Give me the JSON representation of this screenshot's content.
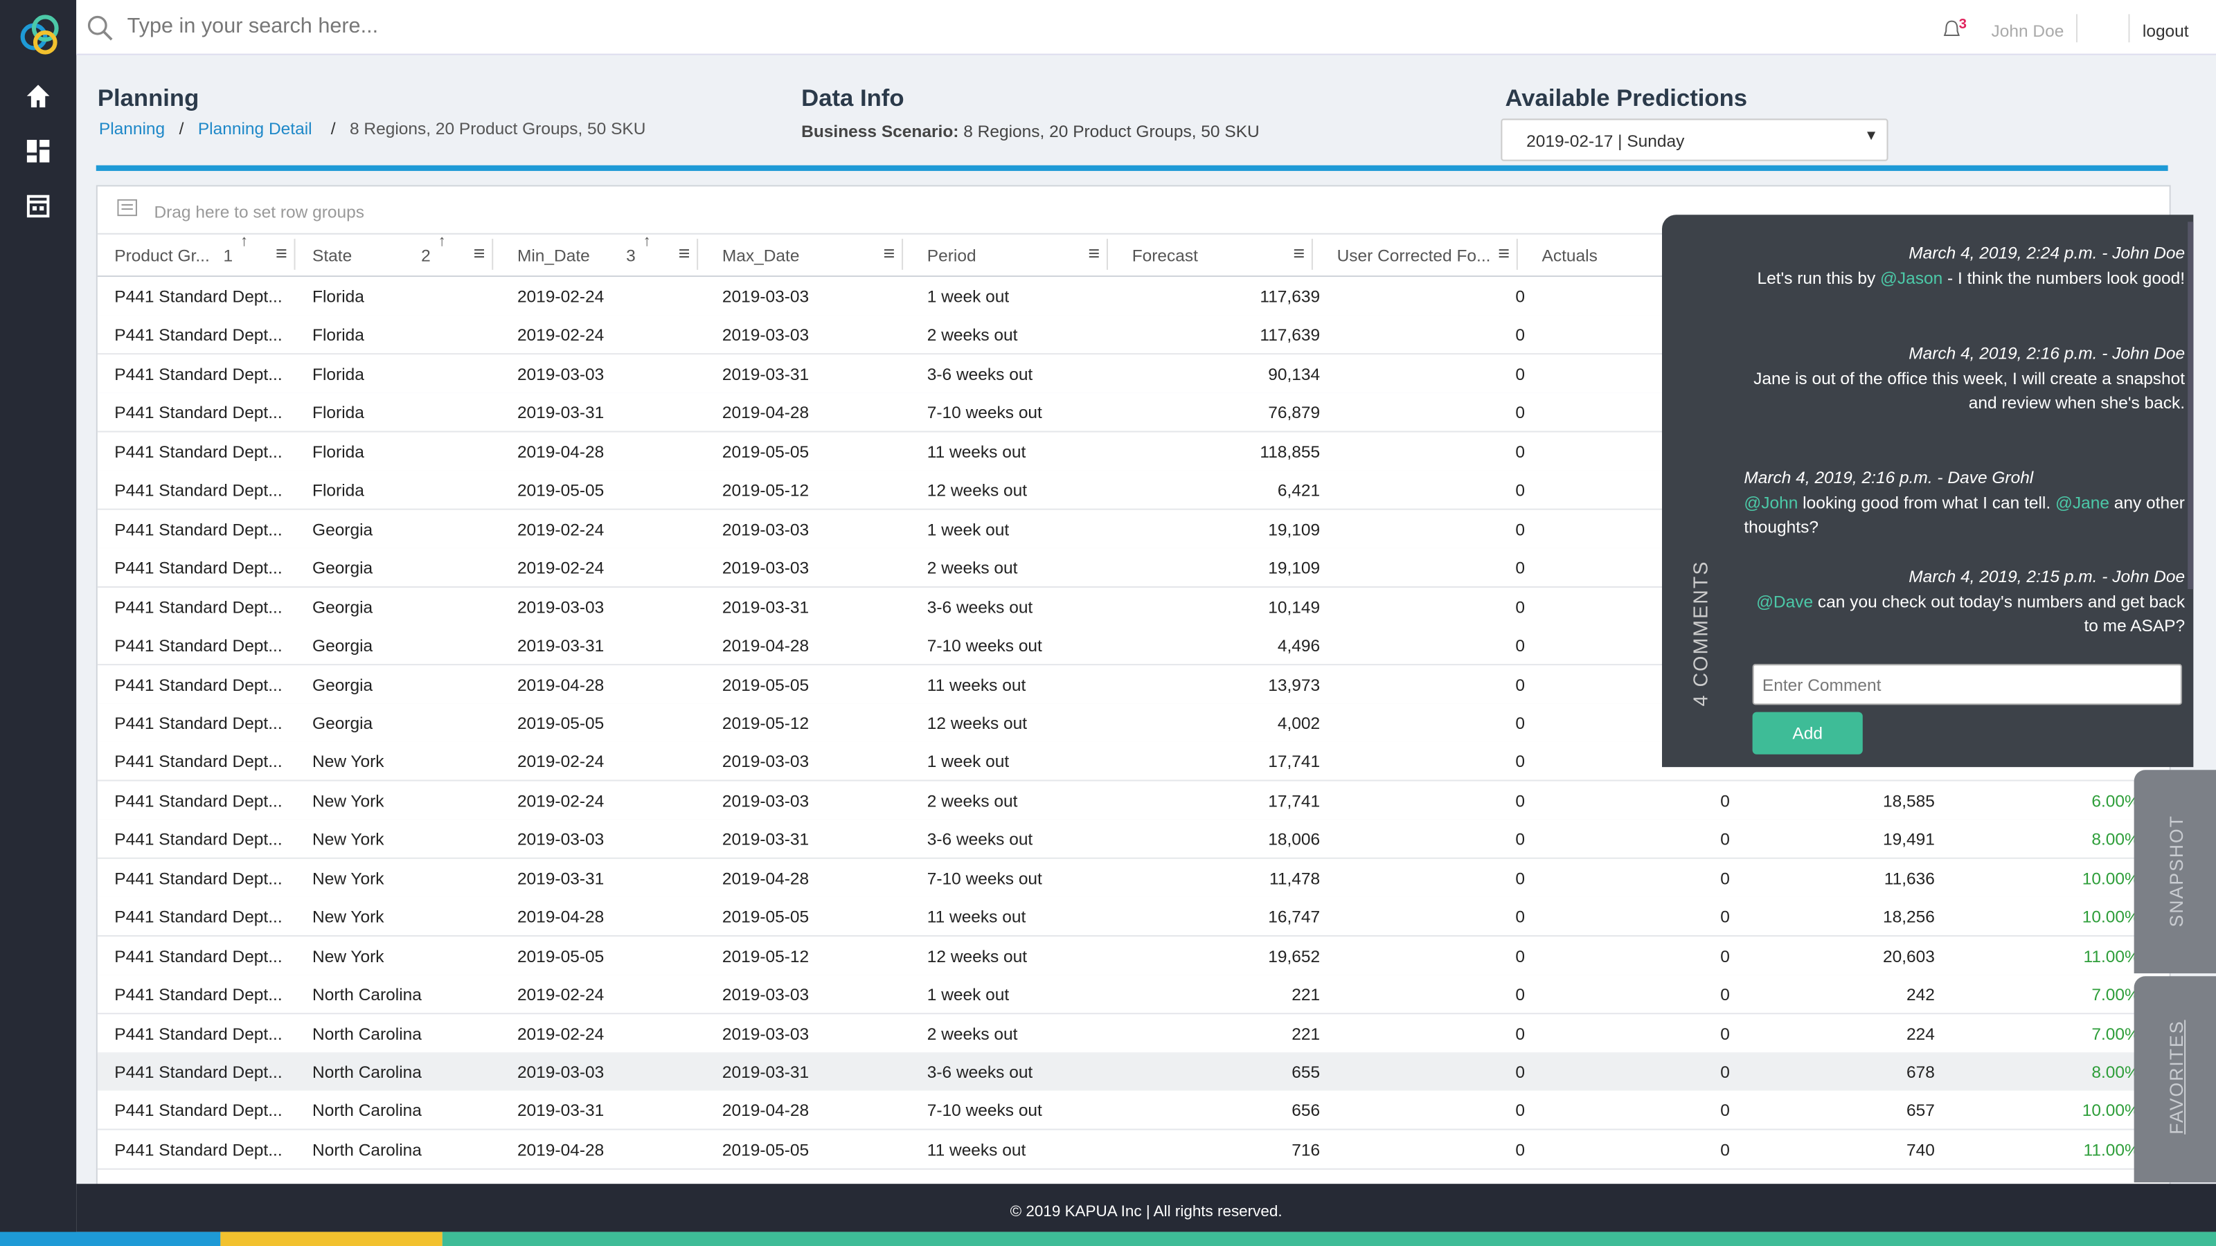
{
  "search_placeholder": "Type in your search here...",
  "header": {
    "notifications": "3",
    "user": "John Doe",
    "logout": "logout"
  },
  "planning": {
    "title": "Planning",
    "breadcrumb": [
      "Planning",
      "Planning Detail",
      "8 Regions, 20 Product Groups, 50 SKU"
    ]
  },
  "data_info": {
    "title": "Data Info",
    "label": "Business Scenario:",
    "value": "8 Regions, 20 Product Groups, 50 SKU"
  },
  "predictions": {
    "title": "Available Predictions",
    "selected": "2019-02-17 | Sunday"
  },
  "table": {
    "group_hint": "Drag here to set row groups",
    "columns": [
      {
        "label": "Product Gr...",
        "sort": "1"
      },
      {
        "label": "State",
        "sort": "2"
      },
      {
        "label": "Min_Date",
        "sort": "3"
      },
      {
        "label": "Max_Date"
      },
      {
        "label": "Period"
      },
      {
        "label": "Forecast"
      },
      {
        "label": "User Corrected Fo..."
      },
      {
        "label": "Actuals"
      }
    ],
    "highlighted_row": 20,
    "rows": [
      [
        "P441 Standard Dept...",
        "Florida",
        "2019-02-24",
        "2019-03-03",
        "1 week out",
        "117,639",
        "0"
      ],
      [
        "P441 Standard Dept...",
        "Florida",
        "2019-02-24",
        "2019-03-03",
        "2 weeks out",
        "117,639",
        "0"
      ],
      [
        "P441 Standard Dept...",
        "Florida",
        "2019-03-03",
        "2019-03-31",
        "3-6 weeks out",
        "90,134",
        "0"
      ],
      [
        "P441 Standard Dept...",
        "Florida",
        "2019-03-31",
        "2019-04-28",
        "7-10 weeks out",
        "76,879",
        "0"
      ],
      [
        "P441 Standard Dept...",
        "Florida",
        "2019-04-28",
        "2019-05-05",
        "11 weeks out",
        "118,855",
        "0"
      ],
      [
        "P441 Standard Dept...",
        "Florida",
        "2019-05-05",
        "2019-05-12",
        "12 weeks out",
        "6,421",
        "0"
      ],
      [
        "P441 Standard Dept...",
        "Georgia",
        "2019-02-24",
        "2019-03-03",
        "1 week out",
        "19,109",
        "0"
      ],
      [
        "P441 Standard Dept...",
        "Georgia",
        "2019-02-24",
        "2019-03-03",
        "2 weeks out",
        "19,109",
        "0"
      ],
      [
        "P441 Standard Dept...",
        "Georgia",
        "2019-03-03",
        "2019-03-31",
        "3-6 weeks out",
        "10,149",
        "0"
      ],
      [
        "P441 Standard Dept...",
        "Georgia",
        "2019-03-31",
        "2019-04-28",
        "7-10 weeks out",
        "4,496",
        "0"
      ],
      [
        "P441 Standard Dept...",
        "Georgia",
        "2019-04-28",
        "2019-05-05",
        "11 weeks out",
        "13,973",
        "0"
      ],
      [
        "P441 Standard Dept...",
        "Georgia",
        "2019-05-05",
        "2019-05-12",
        "12 weeks out",
        "4,002",
        "0"
      ],
      [
        "P441 Standard Dept...",
        "New York",
        "2019-02-24",
        "2019-03-03",
        "1 week out",
        "17,741",
        "0"
      ],
      [
        "P441 Standard Dept...",
        "New York",
        "2019-02-24",
        "2019-03-03",
        "2 weeks out",
        "17,741",
        "0",
        "0",
        "18,585",
        "6.00%"
      ],
      [
        "P441 Standard Dept...",
        "New York",
        "2019-03-03",
        "2019-03-31",
        "3-6 weeks out",
        "18,006",
        "0",
        "0",
        "19,491",
        "8.00%"
      ],
      [
        "P441 Standard Dept...",
        "New York",
        "2019-03-31",
        "2019-04-28",
        "7-10 weeks out",
        "11,478",
        "0",
        "0",
        "11,636",
        "10.00%"
      ],
      [
        "P441 Standard Dept...",
        "New York",
        "2019-04-28",
        "2019-05-05",
        "11 weeks out",
        "16,747",
        "0",
        "0",
        "18,256",
        "10.00%"
      ],
      [
        "P441 Standard Dept...",
        "New York",
        "2019-05-05",
        "2019-05-12",
        "12 weeks out",
        "19,652",
        "0",
        "0",
        "20,603",
        "11.00%"
      ],
      [
        "P441 Standard Dept...",
        "North Carolina",
        "2019-02-24",
        "2019-03-03",
        "1 week out",
        "221",
        "0",
        "0",
        "242",
        "7.00%"
      ],
      [
        "P441 Standard Dept...",
        "North Carolina",
        "2019-02-24",
        "2019-03-03",
        "2 weeks out",
        "221",
        "0",
        "0",
        "224",
        "7.00%"
      ],
      [
        "P441 Standard Dept...",
        "North Carolina",
        "2019-03-03",
        "2019-03-31",
        "3-6 weeks out",
        "655",
        "0",
        "0",
        "678",
        "8.00%"
      ],
      [
        "P441 Standard Dept...",
        "North Carolina",
        "2019-03-31",
        "2019-04-28",
        "7-10 weeks out",
        "656",
        "0",
        "0",
        "657",
        "10.00%"
      ],
      [
        "P441 Standard Dept...",
        "North Carolina",
        "2019-04-28",
        "2019-05-05",
        "11 weeks out",
        "716",
        "0",
        "0",
        "740",
        "11.00%"
      ]
    ]
  },
  "comments": {
    "count_label": "4 COMMENTS",
    "placeholder": "Enter Comment",
    "add": "Add",
    "items": [
      {
        "meta": "March 4, 2019, 2:24 p.m. - John Doe",
        "align": "right",
        "parts": [
          "Let's run this by ",
          "@Jason",
          " - I think the numbers look good!"
        ]
      },
      {
        "meta": "March 4, 2019, 2:16 p.m. - John Doe",
        "align": "right",
        "parts": [
          "Jane is out of the office this week, I will create a snapshot and review when she's back."
        ]
      },
      {
        "meta": "March 4, 2019, 2:16 p.m. - Dave Grohl",
        "align": "left",
        "parts": [
          "@John",
          " looking good from what I can tell. ",
          "@Jane",
          " any other thoughts?"
        ]
      },
      {
        "meta": "March 4, 2019, 2:15 p.m. - John Doe",
        "align": "right",
        "parts": [
          "@Dave",
          " can you check out today's numbers and get back to me ASAP?"
        ]
      }
    ]
  },
  "tabs": [
    "SNAPSHOT",
    "FAVORITES"
  ],
  "footer": "© 2019 KAPUA Inc | All rights reserved."
}
